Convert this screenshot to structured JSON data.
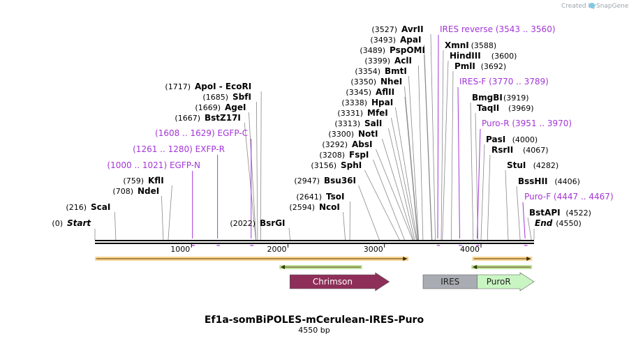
{
  "credit": {
    "prefix": "Created by",
    "brand": "SnapGene"
  },
  "title": "Ef1a-somBiPOLES-mCerulean-IRES-Puro",
  "length_label": "4550 bp",
  "total_bp": 4550,
  "scale_ticks": [
    "1000",
    "2000",
    "3000",
    "4000"
  ],
  "sites": [
    {
      "pos": "(0)",
      "name": "Start",
      "bp": 0,
      "italic": true
    },
    {
      "pos": "(216)",
      "name": "ScaI",
      "bp": 216
    },
    {
      "pos": "(708)",
      "name": "NdeI",
      "bp": 708
    },
    {
      "pos": "(759)",
      "name": "KflI",
      "bp": 759
    },
    {
      "pos": "(1667)",
      "name": "BstZ17I",
      "bp": 1667
    },
    {
      "pos": "(1669)",
      "name": "AgeI",
      "bp": 1669
    },
    {
      "pos": "(1685)",
      "name": "SbfI",
      "bp": 1685
    },
    {
      "pos": "(1717)",
      "name": "ApoI - EcoRI",
      "bp": 1717
    },
    {
      "pos": "(2022)",
      "name": "BsrGI",
      "bp": 2022
    },
    {
      "pos": "(2594)",
      "name": "NcoI",
      "bp": 2594
    },
    {
      "pos": "(2641)",
      "name": "TsoI",
      "bp": 2641
    },
    {
      "pos": "(2947)",
      "name": "Bsu36I",
      "bp": 2947
    },
    {
      "pos": "(3156)",
      "name": "SphI",
      "bp": 3156
    },
    {
      "pos": "(3208)",
      "name": "FspI",
      "bp": 3208
    },
    {
      "pos": "(3292)",
      "name": "AbsI",
      "bp": 3292
    },
    {
      "pos": "(3300)",
      "name": "NotI",
      "bp": 3300
    },
    {
      "pos": "(3313)",
      "name": "SalI",
      "bp": 3313
    },
    {
      "pos": "(3331)",
      "name": "MfeI",
      "bp": 3331
    },
    {
      "pos": "(3338)",
      "name": "HpaI",
      "bp": 3338
    },
    {
      "pos": "(3345)",
      "name": "AflII",
      "bp": 3345
    },
    {
      "pos": "(3350)",
      "name": "NheI",
      "bp": 3350
    },
    {
      "pos": "(3354)",
      "name": "BmtI",
      "bp": 3354
    },
    {
      "pos": "(3399)",
      "name": "AclI",
      "bp": 3399
    },
    {
      "pos": "(3489)",
      "name": "PspOMI",
      "bp": 3489
    },
    {
      "pos": "(3493)",
      "name": "ApaI",
      "bp": 3493
    },
    {
      "pos": "(3527)",
      "name": "AvrII",
      "bp": 3527
    },
    {
      "pos": "(3588)",
      "name": "XmnI",
      "bp": 3588
    },
    {
      "pos": "(3600)",
      "name": "HindIII",
      "bp": 3600
    },
    {
      "pos": "(3692)",
      "name": "PmlI",
      "bp": 3692
    },
    {
      "pos": "(3919)",
      "name": "BmgBI",
      "bp": 3919
    },
    {
      "pos": "(3969)",
      "name": "TaqII",
      "bp": 3969
    },
    {
      "pos": "(4000)",
      "name": "PasI",
      "bp": 4000
    },
    {
      "pos": "(4067)",
      "name": "RsrII",
      "bp": 4067
    },
    {
      "pos": "(4282)",
      "name": "StuI",
      "bp": 4282
    },
    {
      "pos": "(4406)",
      "name": "BssHII",
      "bp": 4406
    },
    {
      "pos": "(4522)",
      "name": "BstAPI",
      "bp": 4522
    },
    {
      "pos": "(4550)",
      "name": "End",
      "bp": 4550,
      "italic": true
    }
  ],
  "primers": [
    {
      "name": "EGFP-N",
      "range": "(1000 .. 1021)",
      "start": 1000,
      "end": 1021,
      "strand": "+"
    },
    {
      "name": "EXFP-R",
      "range": "(1261 .. 1280)",
      "start": 1261,
      "end": 1280,
      "strand": "-"
    },
    {
      "name": "EGFP-C",
      "range": "(1608 .. 1629)",
      "start": 1608,
      "end": 1629,
      "strand": "+"
    },
    {
      "name": "IRES reverse",
      "range": "(3543 .. 3560)",
      "start": 3543,
      "end": 3560,
      "strand": "-"
    },
    {
      "name": "IRES-F",
      "range": "(3770 .. 3789)",
      "start": 3770,
      "end": 3789,
      "strand": "+"
    },
    {
      "name": "Puro-R",
      "range": "(3951 .. 3970)",
      "start": 3951,
      "end": 3970,
      "strand": "-"
    },
    {
      "name": "Puro-F",
      "range": "(4447 .. 4467)",
      "start": 4447,
      "end": 4467,
      "strand": "+"
    }
  ],
  "features": [
    {
      "name": "",
      "start": 0,
      "end": 3250,
      "direction": "right",
      "style": "orange-line"
    },
    {
      "name": "",
      "start": 1910,
      "end": 2770,
      "direction": "left",
      "style": "green-line"
    },
    {
      "name": "",
      "start": 3910,
      "end": 4530,
      "direction": "right",
      "style": "orange-line"
    },
    {
      "name": "",
      "start": 3900,
      "end": 4530,
      "direction": "left",
      "style": "green-line"
    },
    {
      "name": "Chrimson",
      "start": 2020,
      "end": 3050,
      "direction": "right",
      "style": "block",
      "color": "#8e2f59",
      "text_color": "#ffffff"
    },
    {
      "name": "IRES",
      "start": 3400,
      "end": 3960,
      "direction": "none",
      "style": "block",
      "color": "#a9adb3",
      "text_color": "#222222"
    },
    {
      "name": "PuroR",
      "start": 3960,
      "end": 4550,
      "direction": "right",
      "style": "block",
      "color": "#c9f5c2",
      "text_color": "#222222"
    }
  ],
  "colors": {
    "primer": "#a335d6",
    "orange": "#f4b23a",
    "green": "#8fcc52"
  }
}
